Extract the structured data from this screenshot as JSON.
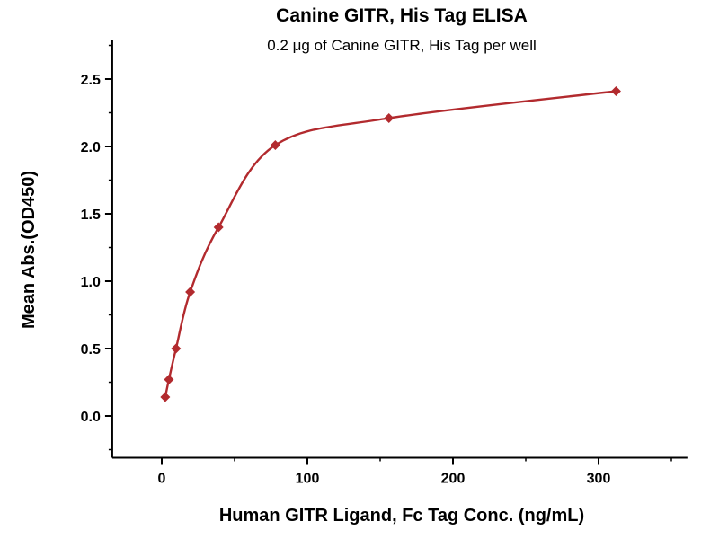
{
  "chart_data": {
    "type": "scatter",
    "title": "Canine GITR, His Tag ELISA",
    "subtitle": "0.2 μg of Canine GITR, His Tag per well",
    "xlabel": "Human GITR Ligand, Fc Tag Conc. (ng/mL)",
    "ylabel": "Mean Abs.(OD450)",
    "x": [
      2.4,
      4.9,
      9.8,
      19.5,
      39,
      78,
      156,
      312
    ],
    "y": [
      0.14,
      0.27,
      0.5,
      0.92,
      1.4,
      2.01,
      2.21,
      2.41
    ],
    "curve_type": "4PL-fit-through-points",
    "x_ticks": [
      0,
      100,
      200,
      300
    ],
    "x_tick_labels": [
      "0",
      "100",
      "200",
      "300"
    ],
    "y_ticks": [
      0.0,
      0.5,
      1.0,
      1.5,
      2.0,
      2.5
    ],
    "y_tick_labels": [
      "0.0",
      "0.5",
      "1.0",
      "1.5",
      "2.0",
      "2.5"
    ],
    "x_minor_step": 50,
    "y_minor_step": 0.25,
    "xlim": [
      -34,
      361
    ],
    "ylim": [
      -0.31,
      2.79
    ],
    "grid": false,
    "legend": null,
    "marker": "diamond",
    "series_color": "#b22a2e",
    "axis_color": "#000000"
  }
}
